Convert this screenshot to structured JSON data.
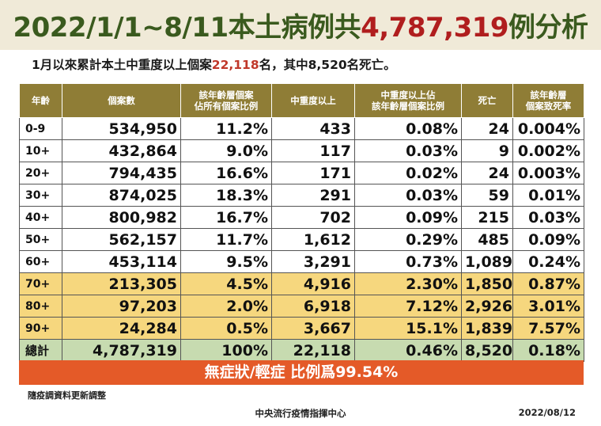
{
  "header": {
    "title_part1": "2022/1/1~8/11本土病例共",
    "title_highlight": "4,787,319",
    "title_part2": "例分析",
    "subtitle_part1": "1月以來累計本土中重度以上個案",
    "subtitle_highlight": "22,118",
    "subtitle_part2": "名，其中8,520名死亡。"
  },
  "table": {
    "columns": [
      "年齡",
      "個案數",
      "該年齡層個案\n佔所有個案比例",
      "中重度以上",
      "中重度以上佔\n該年齡層個案比例",
      "死亡",
      "該年齡層\n個案致死率"
    ],
    "rows": [
      {
        "age": "0-9",
        "cases": "534,950",
        "share": "11.2%",
        "severe": "433",
        "severe_ratio": "0.08%",
        "deaths": "24",
        "cfr": "0.004%"
      },
      {
        "age": "10+",
        "cases": "432,864",
        "share": "9.0%",
        "severe": "117",
        "severe_ratio": "0.03%",
        "deaths": "9",
        "cfr": "0.002%"
      },
      {
        "age": "20+",
        "cases": "794,435",
        "share": "16.6%",
        "severe": "171",
        "severe_ratio": "0.02%",
        "deaths": "24",
        "cfr": "0.003%"
      },
      {
        "age": "30+",
        "cases": "874,025",
        "share": "18.3%",
        "severe": "291",
        "severe_ratio": "0.03%",
        "deaths": "59",
        "cfr": "0.01%"
      },
      {
        "age": "40+",
        "cases": "800,982",
        "share": "16.7%",
        "severe": "702",
        "severe_ratio": "0.09%",
        "deaths": "215",
        "cfr": "0.03%"
      },
      {
        "age": "50+",
        "cases": "562,157",
        "share": "11.7%",
        "severe": "1,612",
        "severe_ratio": "0.29%",
        "deaths": "485",
        "cfr": "0.09%"
      },
      {
        "age": "60+",
        "cases": "453,114",
        "share": "9.5%",
        "severe": "3,291",
        "severe_ratio": "0.73%",
        "deaths": "1,089",
        "cfr": "0.24%"
      },
      {
        "age": "70+",
        "cases": "213,305",
        "share": "4.5%",
        "severe": "4,916",
        "severe_ratio": "2.30%",
        "deaths": "1,850",
        "cfr": "0.87%"
      },
      {
        "age": "80+",
        "cases": "97,203",
        "share": "2.0%",
        "severe": "6,918",
        "severe_ratio": "7.12%",
        "deaths": "2,926",
        "cfr": "3.01%"
      },
      {
        "age": "90+",
        "cases": "24,284",
        "share": "0.5%",
        "severe": "3,667",
        "severe_ratio": "15.1%",
        "deaths": "1,839",
        "cfr": "7.57%"
      }
    ],
    "total": {
      "age": "總計",
      "cases": "4,787,319",
      "share": "100%",
      "severe": "22,118",
      "severe_ratio": "0.46%",
      "deaths": "8,520",
      "cfr": "0.18%"
    }
  },
  "banner": "無症狀/輕症 比例爲99.54%",
  "footer": {
    "note": "隨疫調資料更新調整",
    "source": "中央流行疫情指揮中心",
    "date": "2022/08/12"
  },
  "colors": {
    "title_green": "#3a5a1e",
    "title_red": "#b01e1e",
    "header_bg": "#8f7d36",
    "elderly_row_bg": "#f6d77e",
    "total_row_bg": "#c7dbb0",
    "banner_bg": "#e45a28"
  }
}
